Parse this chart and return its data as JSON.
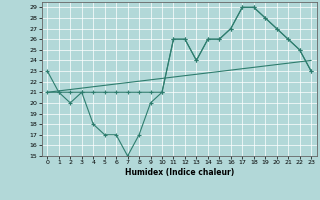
{
  "xlabel": "Humidex (Indice chaleur)",
  "background_color": "#b2d8d8",
  "grid_color": "#ffffff",
  "line_color": "#2e7d6e",
  "xlim": [
    -0.5,
    23.5
  ],
  "ylim": [
    15,
    29.5
  ],
  "xticks": [
    0,
    1,
    2,
    3,
    4,
    5,
    6,
    7,
    8,
    9,
    10,
    11,
    12,
    13,
    14,
    15,
    16,
    17,
    18,
    19,
    20,
    21,
    22,
    23
  ],
  "yticks": [
    15,
    16,
    17,
    18,
    19,
    20,
    21,
    22,
    23,
    24,
    25,
    26,
    27,
    28,
    29
  ],
  "line1_x": [
    0,
    1,
    2,
    3,
    4,
    5,
    6,
    7,
    8,
    9,
    10,
    11,
    12,
    13,
    14,
    15,
    16,
    17,
    18,
    19,
    20,
    21,
    22,
    23
  ],
  "line1_y": [
    23,
    21,
    20,
    21,
    18,
    17,
    17,
    15,
    17,
    20,
    21,
    26,
    26,
    24,
    26,
    26,
    27,
    29,
    29,
    28,
    27,
    26,
    25,
    23
  ],
  "line2_x": [
    0,
    23
  ],
  "line2_y": [
    21,
    24
  ],
  "line3_x": [
    0,
    1,
    2,
    3,
    4,
    5,
    6,
    7,
    8,
    9,
    10,
    11,
    12,
    13,
    14,
    15,
    16,
    17,
    18,
    19,
    20,
    21,
    22,
    23
  ],
  "line3_y": [
    21,
    21,
    21,
    21,
    21,
    21,
    21,
    21,
    21,
    21,
    21,
    26,
    26,
    24,
    26,
    26,
    27,
    29,
    29,
    28,
    27,
    26,
    25,
    23
  ]
}
